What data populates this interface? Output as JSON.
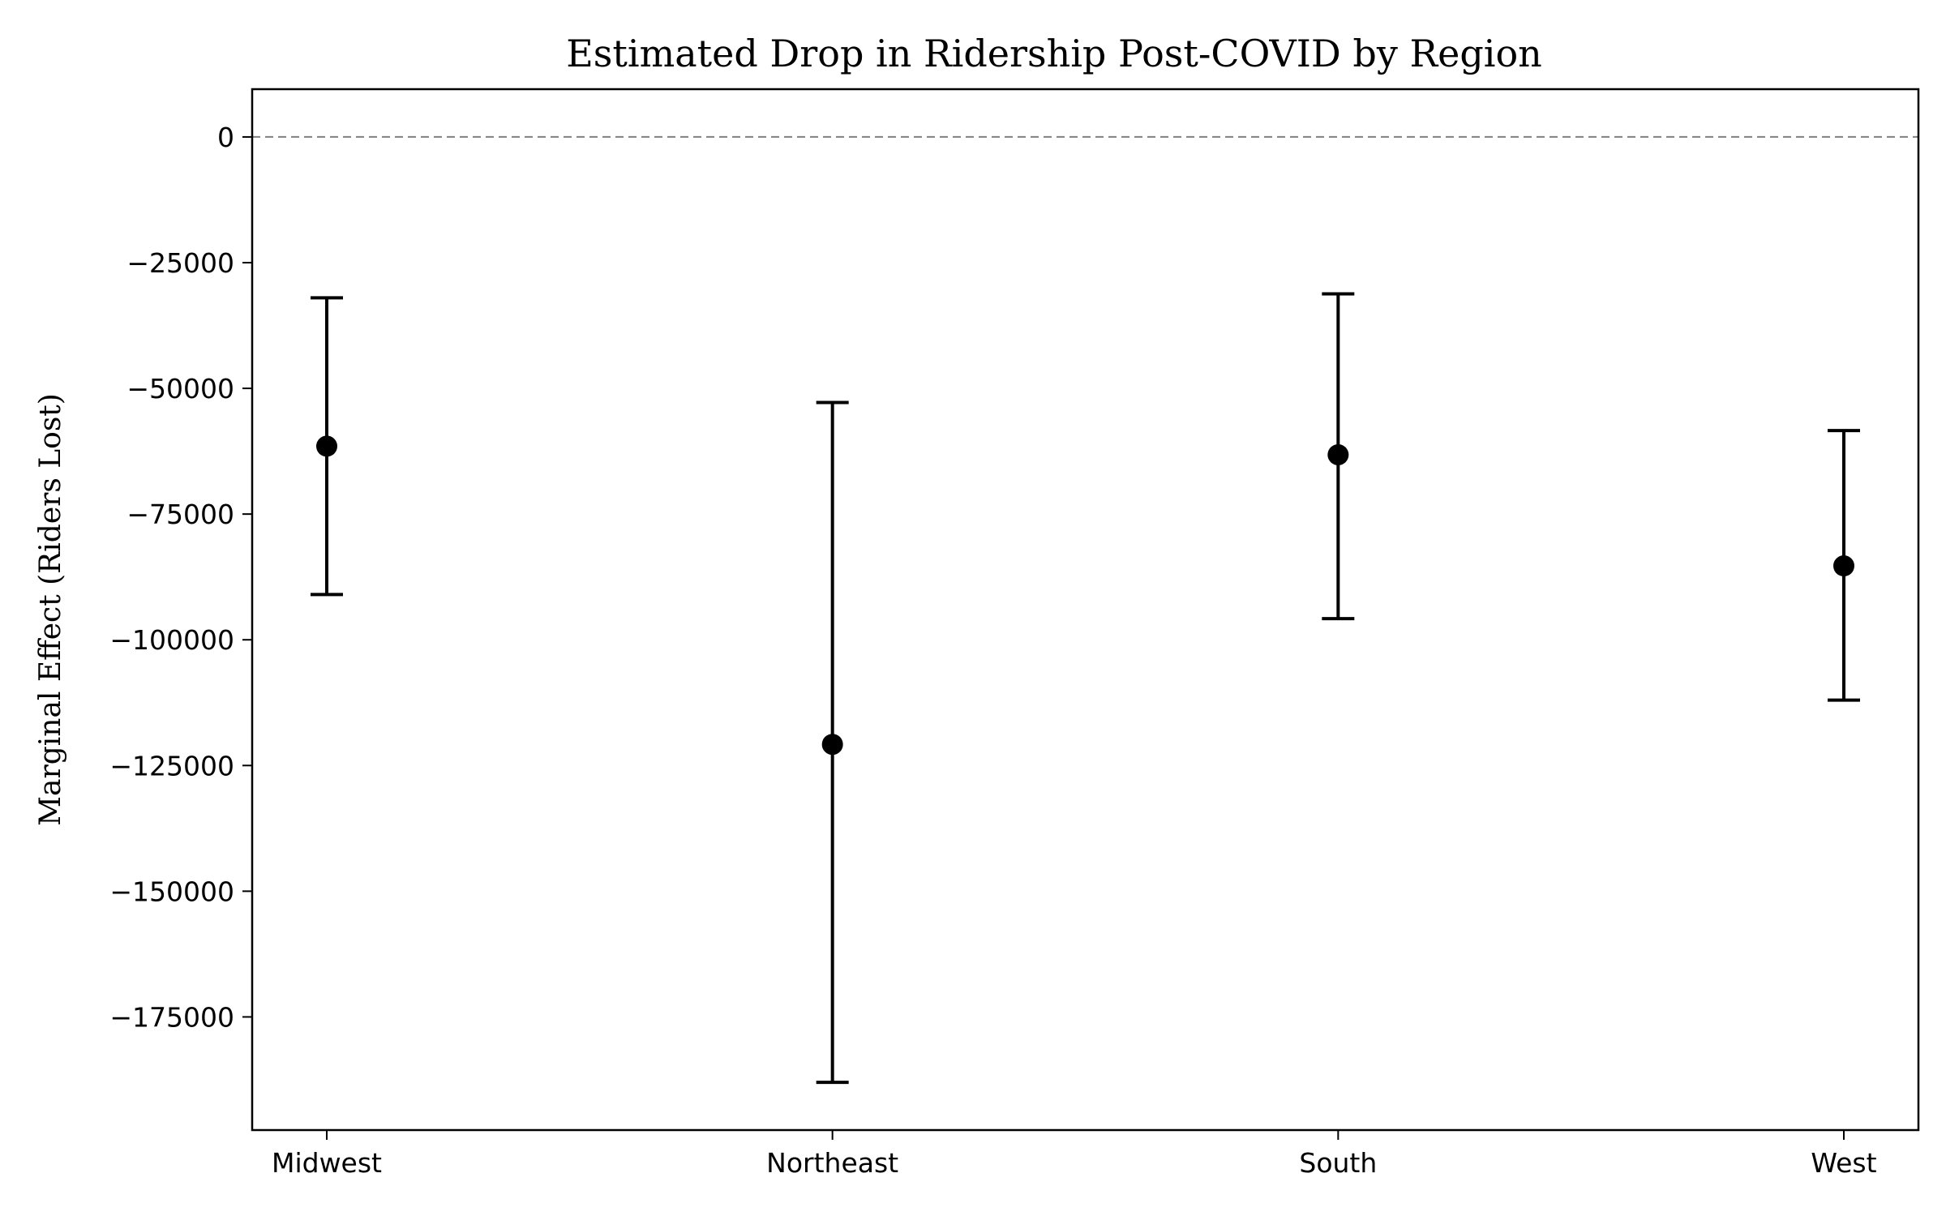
{
  "chart_data": {
    "type": "errorbar",
    "title": "Estimated Drop in Ridership Post-COVID by Region",
    "xlabel": "",
    "ylabel": "Marginal Effect (Riders Lost)",
    "categories": [
      "Midwest",
      "Northeast",
      "South",
      "West"
    ],
    "values": [
      -61500,
      -120800,
      -63200,
      -85300
    ],
    "ci_lower": [
      -91000,
      -188000,
      -95800,
      -112000
    ],
    "ci_upper": [
      -32000,
      -52800,
      -31200,
      -58400
    ],
    "ylim": [
      -197500,
      9500
    ],
    "yticks": [
      0,
      -25000,
      -50000,
      -75000,
      -100000,
      -125000,
      -150000,
      -175000
    ],
    "ytick_labels": [
      "0",
      "−25000",
      "−50000",
      "−75000",
      "−100000",
      "−125000",
      "−150000",
      "−175000"
    ],
    "reference_line": 0,
    "grid": false,
    "marker_color": "#000000",
    "errorbar_color": "#000000",
    "reference_line_color": "#808080"
  }
}
